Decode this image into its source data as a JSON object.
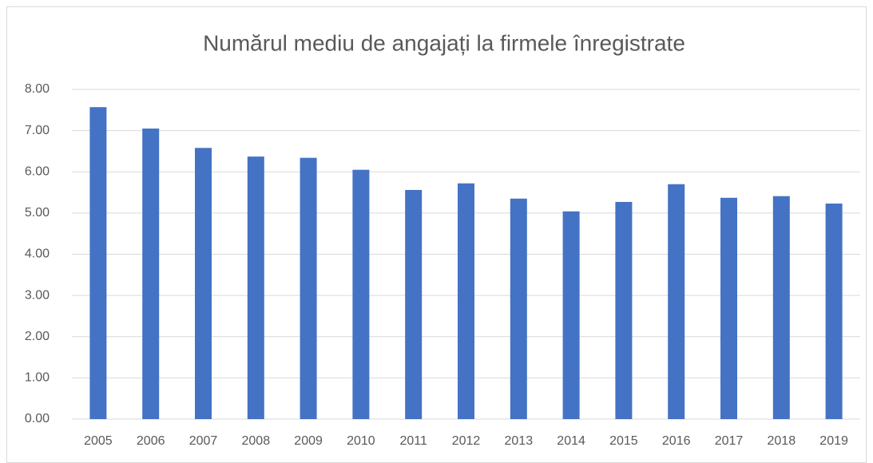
{
  "chart_data": {
    "type": "bar",
    "title": "Numărul mediu de angajați la firmele înregistrate",
    "categories": [
      "2005",
      "2006",
      "2007",
      "2008",
      "2009",
      "2010",
      "2011",
      "2012",
      "2013",
      "2014",
      "2015",
      "2016",
      "2017",
      "2018",
      "2019"
    ],
    "values": [
      7.57,
      7.05,
      6.58,
      6.37,
      6.34,
      6.05,
      5.56,
      5.72,
      5.35,
      5.04,
      5.27,
      5.7,
      5.37,
      5.41,
      5.23
    ],
    "color": "#4472c4",
    "ylim": [
      0,
      8
    ],
    "yticks": [
      {
        "value": 0,
        "label": "0.00"
      },
      {
        "value": 1,
        "label": "1.00"
      },
      {
        "value": 2,
        "label": "2.00"
      },
      {
        "value": 3,
        "label": "3.00"
      },
      {
        "value": 4,
        "label": "4.00"
      },
      {
        "value": 5,
        "label": "5.00"
      },
      {
        "value": 6,
        "label": "6.00"
      },
      {
        "value": 7,
        "label": "7.00"
      },
      {
        "value": 8,
        "label": "8.00"
      }
    ],
    "grid": true
  }
}
